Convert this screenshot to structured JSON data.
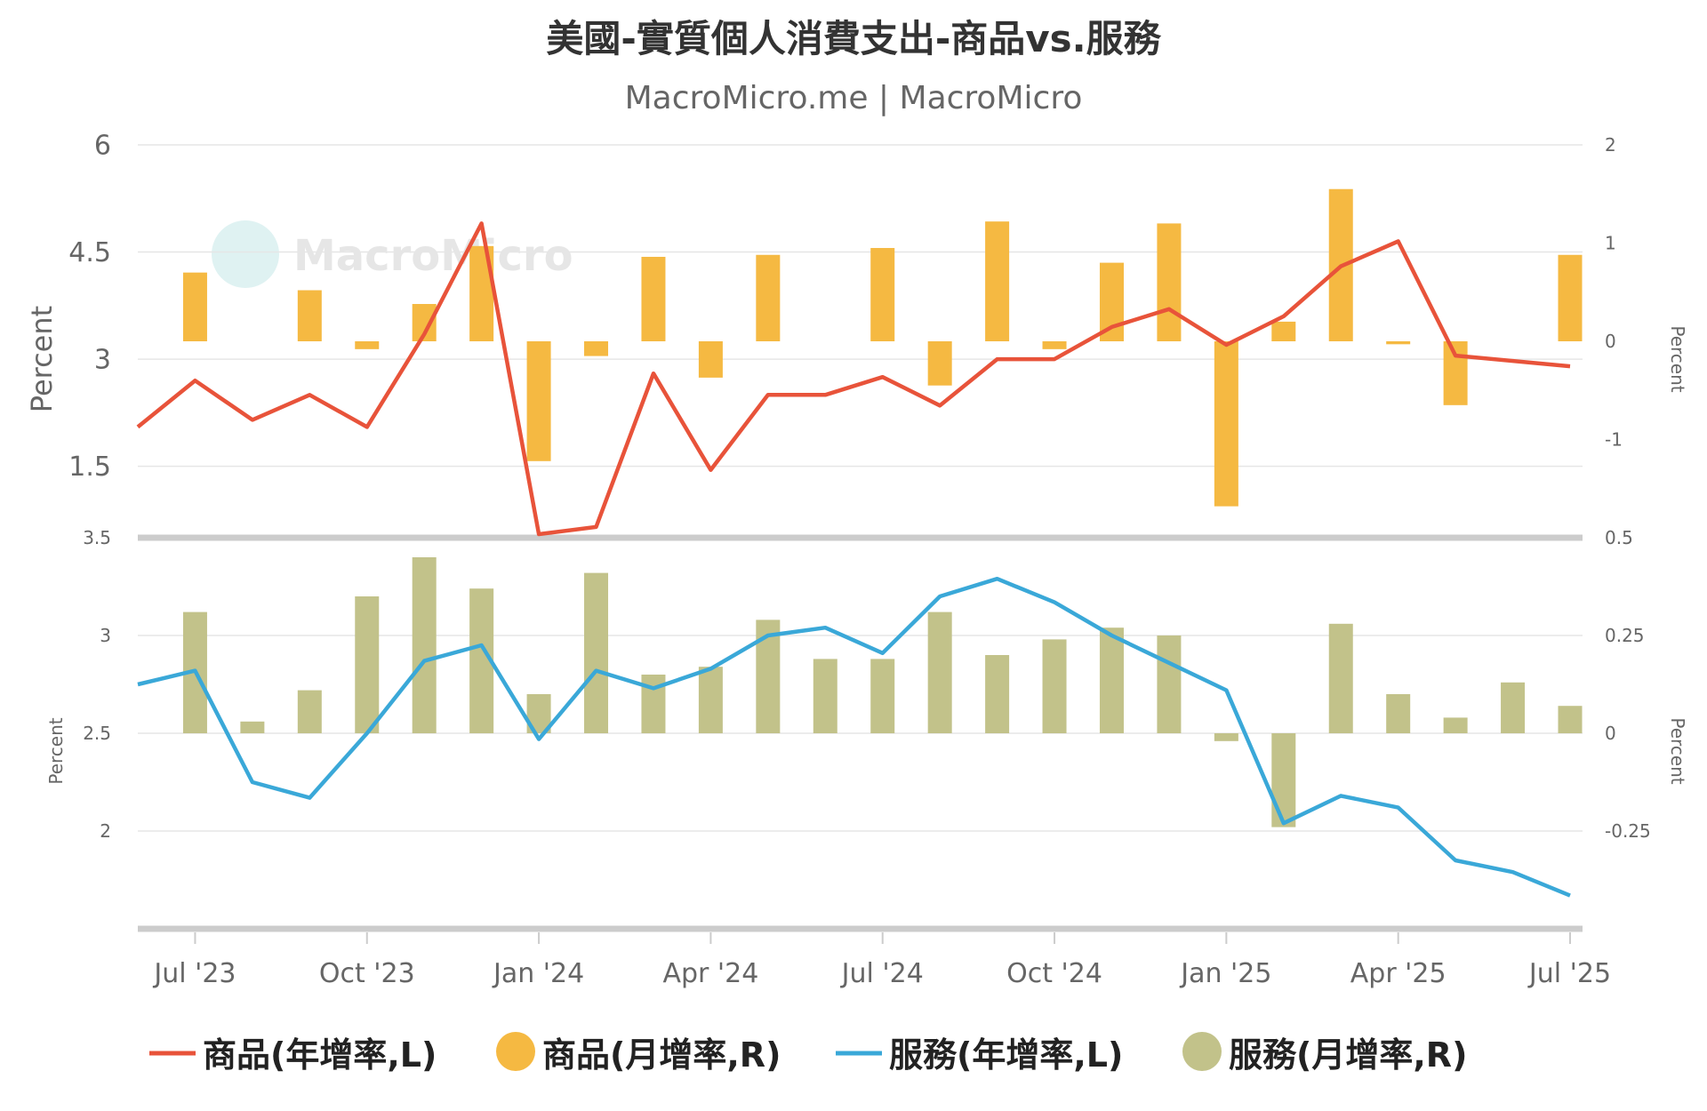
{
  "title": "美國-實質個人消費支出-商品vs.服務",
  "subtitle": "MacroMicro.me | MacroMicro",
  "watermark": "MacroMicro",
  "colors": {
    "goods_yoy": "#e8533a",
    "goods_mom": "#f5b942",
    "services_yoy": "#3aa8d8",
    "services_mom": "#c2c28a"
  },
  "chart_data": [
    {
      "type": "bar+line",
      "panel": "top",
      "ylabel_left": "Percent",
      "ylabel_right": "Percent",
      "yticks_left": [
        "6",
        "4.5",
        "3",
        "1.5"
      ],
      "yticks_right": [
        "2",
        "1",
        "0",
        "-1"
      ],
      "ylim_left": [
        0.5,
        6
      ],
      "ylim_right": [
        -2,
        2
      ],
      "x": [
        "2023-06",
        "2023-07",
        "2023-08",
        "2023-09",
        "2023-10",
        "2023-11",
        "2023-12",
        "2024-01",
        "2024-02",
        "2024-03",
        "2024-04",
        "2024-05",
        "2024-06",
        "2024-07",
        "2024-08",
        "2024-09",
        "2024-10",
        "2024-11",
        "2024-12",
        "2025-01",
        "2025-02",
        "2025-03",
        "2025-04",
        "2025-05",
        "2025-06",
        "2025-07"
      ],
      "series": [
        {
          "name": "商品(年增率,L)",
          "type": "line",
          "axis": "left",
          "values": [
            2.05,
            2.7,
            2.15,
            2.5,
            2.05,
            3.35,
            4.9,
            0.55,
            0.65,
            2.8,
            1.45,
            2.5,
            2.5,
            2.75,
            2.35,
            3.0,
            3.0,
            3.45,
            3.7,
            3.2,
            3.6,
            4.3,
            4.65,
            3.05,
            null,
            2.9
          ]
        },
        {
          "name": "商品(月增率,R)",
          "type": "bar",
          "axis": "right",
          "values": [
            null,
            0.7,
            null,
            0.52,
            -0.08,
            0.38,
            0.97,
            -1.22,
            -0.15,
            0.86,
            -0.37,
            0.88,
            null,
            0.95,
            -0.45,
            1.22,
            -0.08,
            0.8,
            1.2,
            -1.68,
            0.2,
            1.55,
            -0.03,
            -0.65,
            null,
            0.88
          ]
        }
      ]
    },
    {
      "type": "bar+line",
      "panel": "bottom",
      "ylabel_left": "Percent",
      "ylabel_right": "Percent",
      "yticks_left": [
        "3.5",
        "3",
        "2.5",
        "2"
      ],
      "yticks_right": [
        "0.5",
        "0.25",
        "0",
        "-0.25"
      ],
      "ylim_left": [
        1.5,
        3.5
      ],
      "ylim_right": [
        -0.5,
        0.5
      ],
      "x": [
        "2023-06",
        "2023-07",
        "2023-08",
        "2023-09",
        "2023-10",
        "2023-11",
        "2023-12",
        "2024-01",
        "2024-02",
        "2024-03",
        "2024-04",
        "2024-05",
        "2024-06",
        "2024-07",
        "2024-08",
        "2024-09",
        "2024-10",
        "2024-11",
        "2024-12",
        "2025-01",
        "2025-02",
        "2025-03",
        "2025-04",
        "2025-05",
        "2025-06",
        "2025-07"
      ],
      "series": [
        {
          "name": "服務(年增率,L)",
          "type": "line",
          "axis": "left",
          "values": [
            2.75,
            2.82,
            2.25,
            2.17,
            2.5,
            2.87,
            2.95,
            2.47,
            2.82,
            2.73,
            2.83,
            3.0,
            3.04,
            2.91,
            3.2,
            3.29,
            3.17,
            3.0,
            2.86,
            2.72,
            2.04,
            2.18,
            2.12,
            1.85,
            1.79,
            1.67
          ]
        },
        {
          "name": "服務(月增率,R)",
          "type": "bar",
          "axis": "right",
          "values": [
            null,
            0.31,
            0.03,
            0.11,
            0.35,
            0.45,
            0.37,
            0.1,
            0.41,
            0.15,
            0.17,
            0.29,
            0.19,
            0.19,
            0.31,
            0.2,
            0.24,
            0.27,
            0.25,
            -0.02,
            -0.24,
            0.28,
            0.1,
            0.04,
            0.13,
            0.07
          ]
        }
      ]
    }
  ],
  "x_axis": {
    "tick_labels": [
      "Jul '23",
      "Oct '23",
      "Jan '24",
      "Apr '24",
      "Jul '24",
      "Oct '24",
      "Jan '25",
      "Apr '25",
      "Jul '25"
    ],
    "tick_months": [
      "2023-07",
      "2023-10",
      "2024-01",
      "2024-04",
      "2024-07",
      "2024-10",
      "2025-01",
      "2025-04",
      "2025-07"
    ]
  },
  "legend": [
    {
      "label": "商品(年增率,L)",
      "symbol": "line",
      "color_key": "goods_yoy"
    },
    {
      "label": "商品(月增率,R)",
      "symbol": "circle",
      "color_key": "goods_mom"
    },
    {
      "label": "服務(年增率,L)",
      "symbol": "line",
      "color_key": "services_yoy"
    },
    {
      "label": "服務(月增率,R)",
      "symbol": "circle",
      "color_key": "services_mom"
    }
  ]
}
